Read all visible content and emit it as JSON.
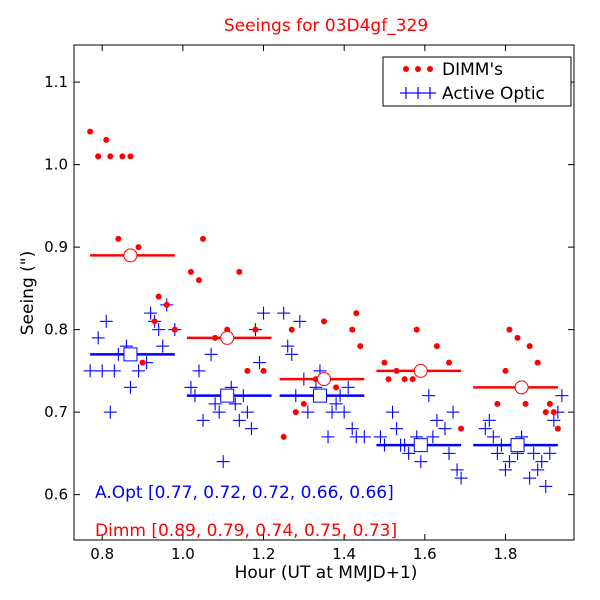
{
  "chart_data": {
    "type": "scatter",
    "title": "Seeings for 03D4gf_329",
    "xlabel": "Hour (UT at MMJD+1)",
    "ylabel": "Seeing (\")",
    "xlim": [
      0.73,
      1.97
    ],
    "ylim": [
      0.545,
      1.145
    ],
    "x_ticks": [
      "0.8",
      "1.0",
      "1.2",
      "1.4",
      "1.6",
      "1.8"
    ],
    "y_ticks": [
      "0.6",
      "0.7",
      "0.8",
      "0.9",
      "1.0",
      "1.1"
    ],
    "grid": false,
    "legend_position": "top-right",
    "colors": {
      "dimm": "#ff0000",
      "aopt": "#0000ff",
      "title": "#ff0000"
    },
    "series": [
      {
        "name": "DIMM's",
        "marker": "dot",
        "x": [
          0.77,
          0.79,
          0.81,
          0.79,
          0.82,
          0.85,
          0.87,
          0.84,
          0.89,
          0.9,
          0.93,
          0.94,
          0.96,
          0.98,
          1.02,
          1.04,
          1.05,
          1.08,
          1.11,
          1.14,
          1.16,
          1.18,
          1.2,
          1.25,
          1.27,
          1.28,
          1.3,
          1.33,
          1.35,
          1.38,
          1.42,
          1.43,
          1.44,
          1.5,
          1.51,
          1.53,
          1.55,
          1.57,
          1.58,
          1.6,
          1.63,
          1.66,
          1.69,
          1.78,
          1.8,
          1.81,
          1.83,
          1.85,
          1.86,
          1.88,
          1.9,
          1.91,
          1.92,
          1.93
        ],
        "y": [
          1.04,
          1.01,
          1.03,
          1.01,
          1.01,
          1.01,
          1.01,
          0.91,
          0.9,
          0.76,
          0.81,
          0.84,
          0.83,
          0.8,
          0.87,
          0.86,
          0.91,
          0.79,
          0.8,
          0.87,
          0.75,
          0.8,
          0.75,
          0.67,
          0.8,
          0.7,
          0.71,
          0.74,
          0.81,
          0.73,
          0.8,
          0.82,
          0.78,
          0.76,
          0.74,
          0.75,
          0.74,
          0.74,
          0.8,
          0.75,
          0.78,
          0.76,
          0.68,
          0.71,
          0.75,
          0.8,
          0.79,
          0.71,
          0.78,
          0.76,
          0.7,
          0.71,
          0.7,
          0.68
        ],
        "binned_means": [
          0.89,
          0.79,
          0.74,
          0.75,
          0.73
        ]
      },
      {
        "name": "Active Optic",
        "marker": "plus",
        "x": [
          0.77,
          0.79,
          0.8,
          0.81,
          0.82,
          0.83,
          0.84,
          0.86,
          0.87,
          0.88,
          0.89,
          0.91,
          0.92,
          0.93,
          0.94,
          0.95,
          0.96,
          0.98,
          1.02,
          1.03,
          1.04,
          1.05,
          1.07,
          1.08,
          1.09,
          1.1,
          1.11,
          1.12,
          1.13,
          1.14,
          1.15,
          1.16,
          1.17,
          1.18,
          1.19,
          1.2,
          1.25,
          1.26,
          1.27,
          1.28,
          1.29,
          1.3,
          1.31,
          1.33,
          1.34,
          1.35,
          1.36,
          1.37,
          1.38,
          1.39,
          1.4,
          1.41,
          1.42,
          1.43,
          1.45,
          1.49,
          1.5,
          1.52,
          1.53,
          1.54,
          1.55,
          1.56,
          1.58,
          1.59,
          1.6,
          1.61,
          1.62,
          1.63,
          1.65,
          1.66,
          1.67,
          1.68,
          1.69,
          1.75,
          1.76,
          1.77,
          1.78,
          1.79,
          1.8,
          1.81,
          1.82,
          1.83,
          1.84,
          1.86,
          1.87,
          1.88,
          1.89,
          1.9,
          1.91,
          1.92,
          1.93,
          1.94
        ],
        "y": [
          0.75,
          0.79,
          0.75,
          0.81,
          0.7,
          0.75,
          0.77,
          0.78,
          0.73,
          0.77,
          0.75,
          0.76,
          0.82,
          0.81,
          0.8,
          0.78,
          0.83,
          0.8,
          0.73,
          0.72,
          0.75,
          0.69,
          0.77,
          0.71,
          0.7,
          0.64,
          0.72,
          0.73,
          0.71,
          0.69,
          0.72,
          0.7,
          0.68,
          0.8,
          0.76,
          0.82,
          0.82,
          0.78,
          0.77,
          0.72,
          0.81,
          0.74,
          0.7,
          0.73,
          0.75,
          0.72,
          0.67,
          0.7,
          0.71,
          0.72,
          0.7,
          0.73,
          0.68,
          0.67,
          0.67,
          0.67,
          0.66,
          0.7,
          0.68,
          0.66,
          0.66,
          0.65,
          0.67,
          0.64,
          0.66,
          0.72,
          0.67,
          0.69,
          0.68,
          0.65,
          0.7,
          0.63,
          0.62,
          0.68,
          0.69,
          0.67,
          0.65,
          0.66,
          0.63,
          0.64,
          0.66,
          0.65,
          0.67,
          0.62,
          0.65,
          0.63,
          0.64,
          0.61,
          0.65,
          0.69,
          0.7,
          0.72
        ],
        "binned_means": [
          0.77,
          0.72,
          0.72,
          0.66,
          0.66
        ]
      }
    ],
    "bins": {
      "ranges": [
        [
          0.77,
          0.98
        ],
        [
          1.01,
          1.22
        ],
        [
          1.24,
          1.45
        ],
        [
          1.48,
          1.69
        ],
        [
          1.72,
          1.93
        ]
      ],
      "centers": [
        0.87,
        1.11,
        1.35,
        1.59,
        1.83
      ],
      "dimm_marker_x": [
        0.87,
        1.11,
        1.35,
        1.59,
        1.84
      ],
      "aopt_marker_x": [
        0.87,
        1.11,
        1.34,
        1.59,
        1.83
      ]
    },
    "annotations": {
      "aopt": "A.Opt [0.77, 0.72, 0.72, 0.66, 0.66]",
      "dimm": "Dimm [0.89, 0.79, 0.74, 0.75, 0.73]"
    }
  }
}
